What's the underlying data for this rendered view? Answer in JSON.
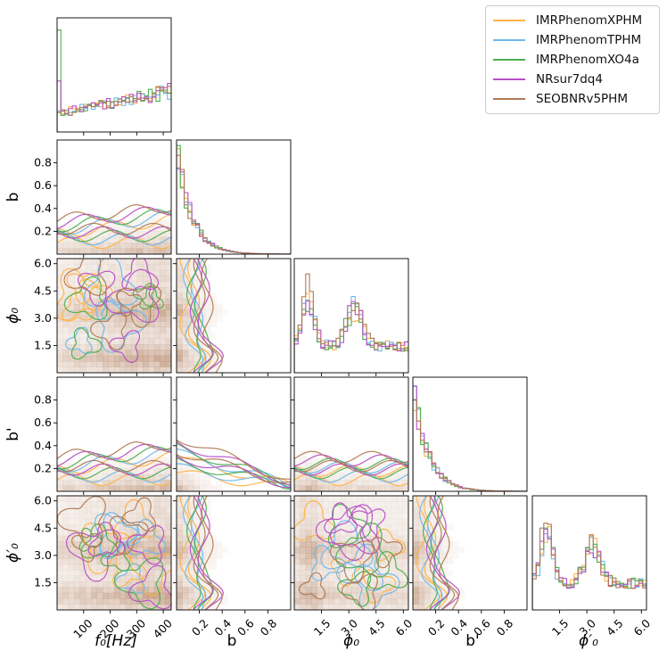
{
  "chart_data": {
    "type": "corner",
    "parameters": [
      "f0",
      "b",
      "phi0",
      "b2",
      "phi0p"
    ],
    "param_labels": {
      "f0": "f₀[Hz]",
      "b": "b",
      "phi0": "ϕ₀",
      "b2": "b'",
      "phi0p": "ϕ′₀"
    },
    "ranges": {
      "f0": [
        0,
        430
      ],
      "b": [
        0,
        1.0
      ],
      "phi0": [
        0,
        6.28
      ],
      "b2": [
        0,
        1.0
      ],
      "phi0p": [
        0,
        6.28
      ]
    },
    "ticks": {
      "f0": [
        100,
        200,
        300,
        400
      ],
      "b": [
        0.2,
        0.4,
        0.6,
        0.8
      ],
      "phi0": [
        1.5,
        3.0,
        4.5,
        6.0
      ],
      "b2": [
        0.2,
        0.4,
        0.6,
        0.8
      ],
      "phi0p": [
        1.5,
        3.0,
        4.5,
        6.0
      ]
    },
    "tick_labels": {
      "f0": [
        "100",
        "200",
        "300",
        "400"
      ],
      "b": [
        "0.2",
        "0.4",
        "0.6",
        "0.8"
      ],
      "phi0": [
        "1.5",
        "3.0",
        "4.5",
        "6.0"
      ],
      "b2": [
        "0.2",
        "0.4",
        "0.6",
        "0.8"
      ],
      "phi0p": [
        "1.5",
        "3.0",
        "4.5",
        "6.0"
      ]
    },
    "ytick_labels": {
      "b": [
        "0.2",
        "0.4",
        "0.6",
        "0.8"
      ],
      "phi0": [
        "1.5",
        "3.0",
        "4.5",
        "6.0"
      ],
      "b2": [
        "0.2",
        "0.4",
        "0.6",
        "0.8"
      ],
      "phi0p": [
        "1.5",
        "3.0",
        "4.5",
        "6.0"
      ]
    },
    "legend_position": "top-right",
    "series": [
      {
        "name": "IMRPhenomXPHM",
        "color": "#ffb347"
      },
      {
        "name": "IMRPhenomTPHM",
        "color": "#6fb8f0"
      },
      {
        "name": "IMRPhenomXO4a",
        "color": "#4caf50"
      },
      {
        "name": "NRsur7dq4",
        "color": "#b84fc8"
      },
      {
        "name": "SEOBNRv5PHM",
        "color": "#b07a55"
      }
    ]
  }
}
